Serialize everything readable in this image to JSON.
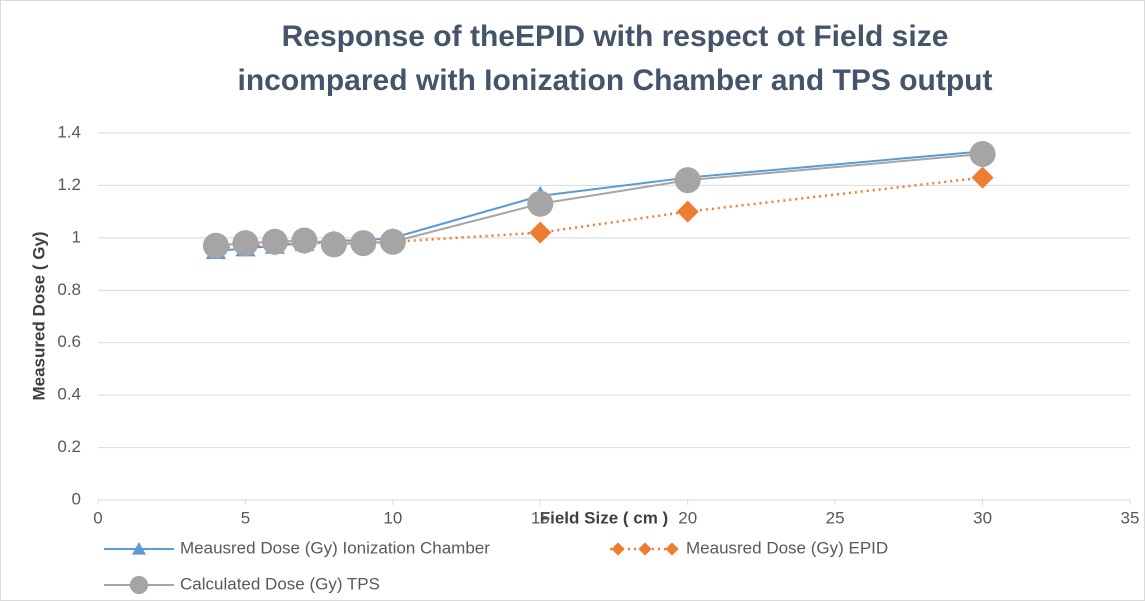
{
  "chart_data": {
    "type": "line",
    "title": [
      "Response of theEPID with respect ot Field size",
      "incompared with Ionization Chamber and  TPS output"
    ],
    "x_label": "Field Size ( cm )",
    "y_label": "Measured Dose ( Gy)",
    "x": [
      4,
      5,
      6,
      7,
      8,
      9,
      10,
      15,
      20,
      30
    ],
    "series": [
      {
        "name": "Meausred Dose (Gy) Ionization Chamber",
        "color": "#5b9bd5",
        "marker": "triangle",
        "dash": "solid",
        "values": [
          0.95,
          0.96,
          0.97,
          0.98,
          0.99,
          0.99,
          1.0,
          1.16,
          1.23,
          1.33
        ]
      },
      {
        "name": "Meausred Dose (Gy) EPID",
        "color": "#ed7d31",
        "marker": "diamond",
        "dash": "dotted",
        "values": [
          0.96,
          0.97,
          0.975,
          0.98,
          0.98,
          0.98,
          0.985,
          1.02,
          1.1,
          1.23
        ]
      },
      {
        "name": "Calculated Dose (Gy) TPS",
        "color": "#a5a5a5",
        "marker": "circle",
        "dash": "solid",
        "values": [
          0.97,
          0.98,
          0.985,
          0.99,
          0.975,
          0.98,
          0.985,
          1.13,
          1.22,
          1.32
        ]
      }
    ],
    "xlim": [
      0,
      35
    ],
    "xticks": [
      0,
      5,
      10,
      15,
      20,
      25,
      30,
      35
    ],
    "ylim": [
      0,
      1.4
    ],
    "yticks": [
      0,
      0.2,
      0.4,
      0.6,
      0.8,
      1,
      1.2,
      1.4
    ],
    "grid": true,
    "legend": "bottom"
  }
}
